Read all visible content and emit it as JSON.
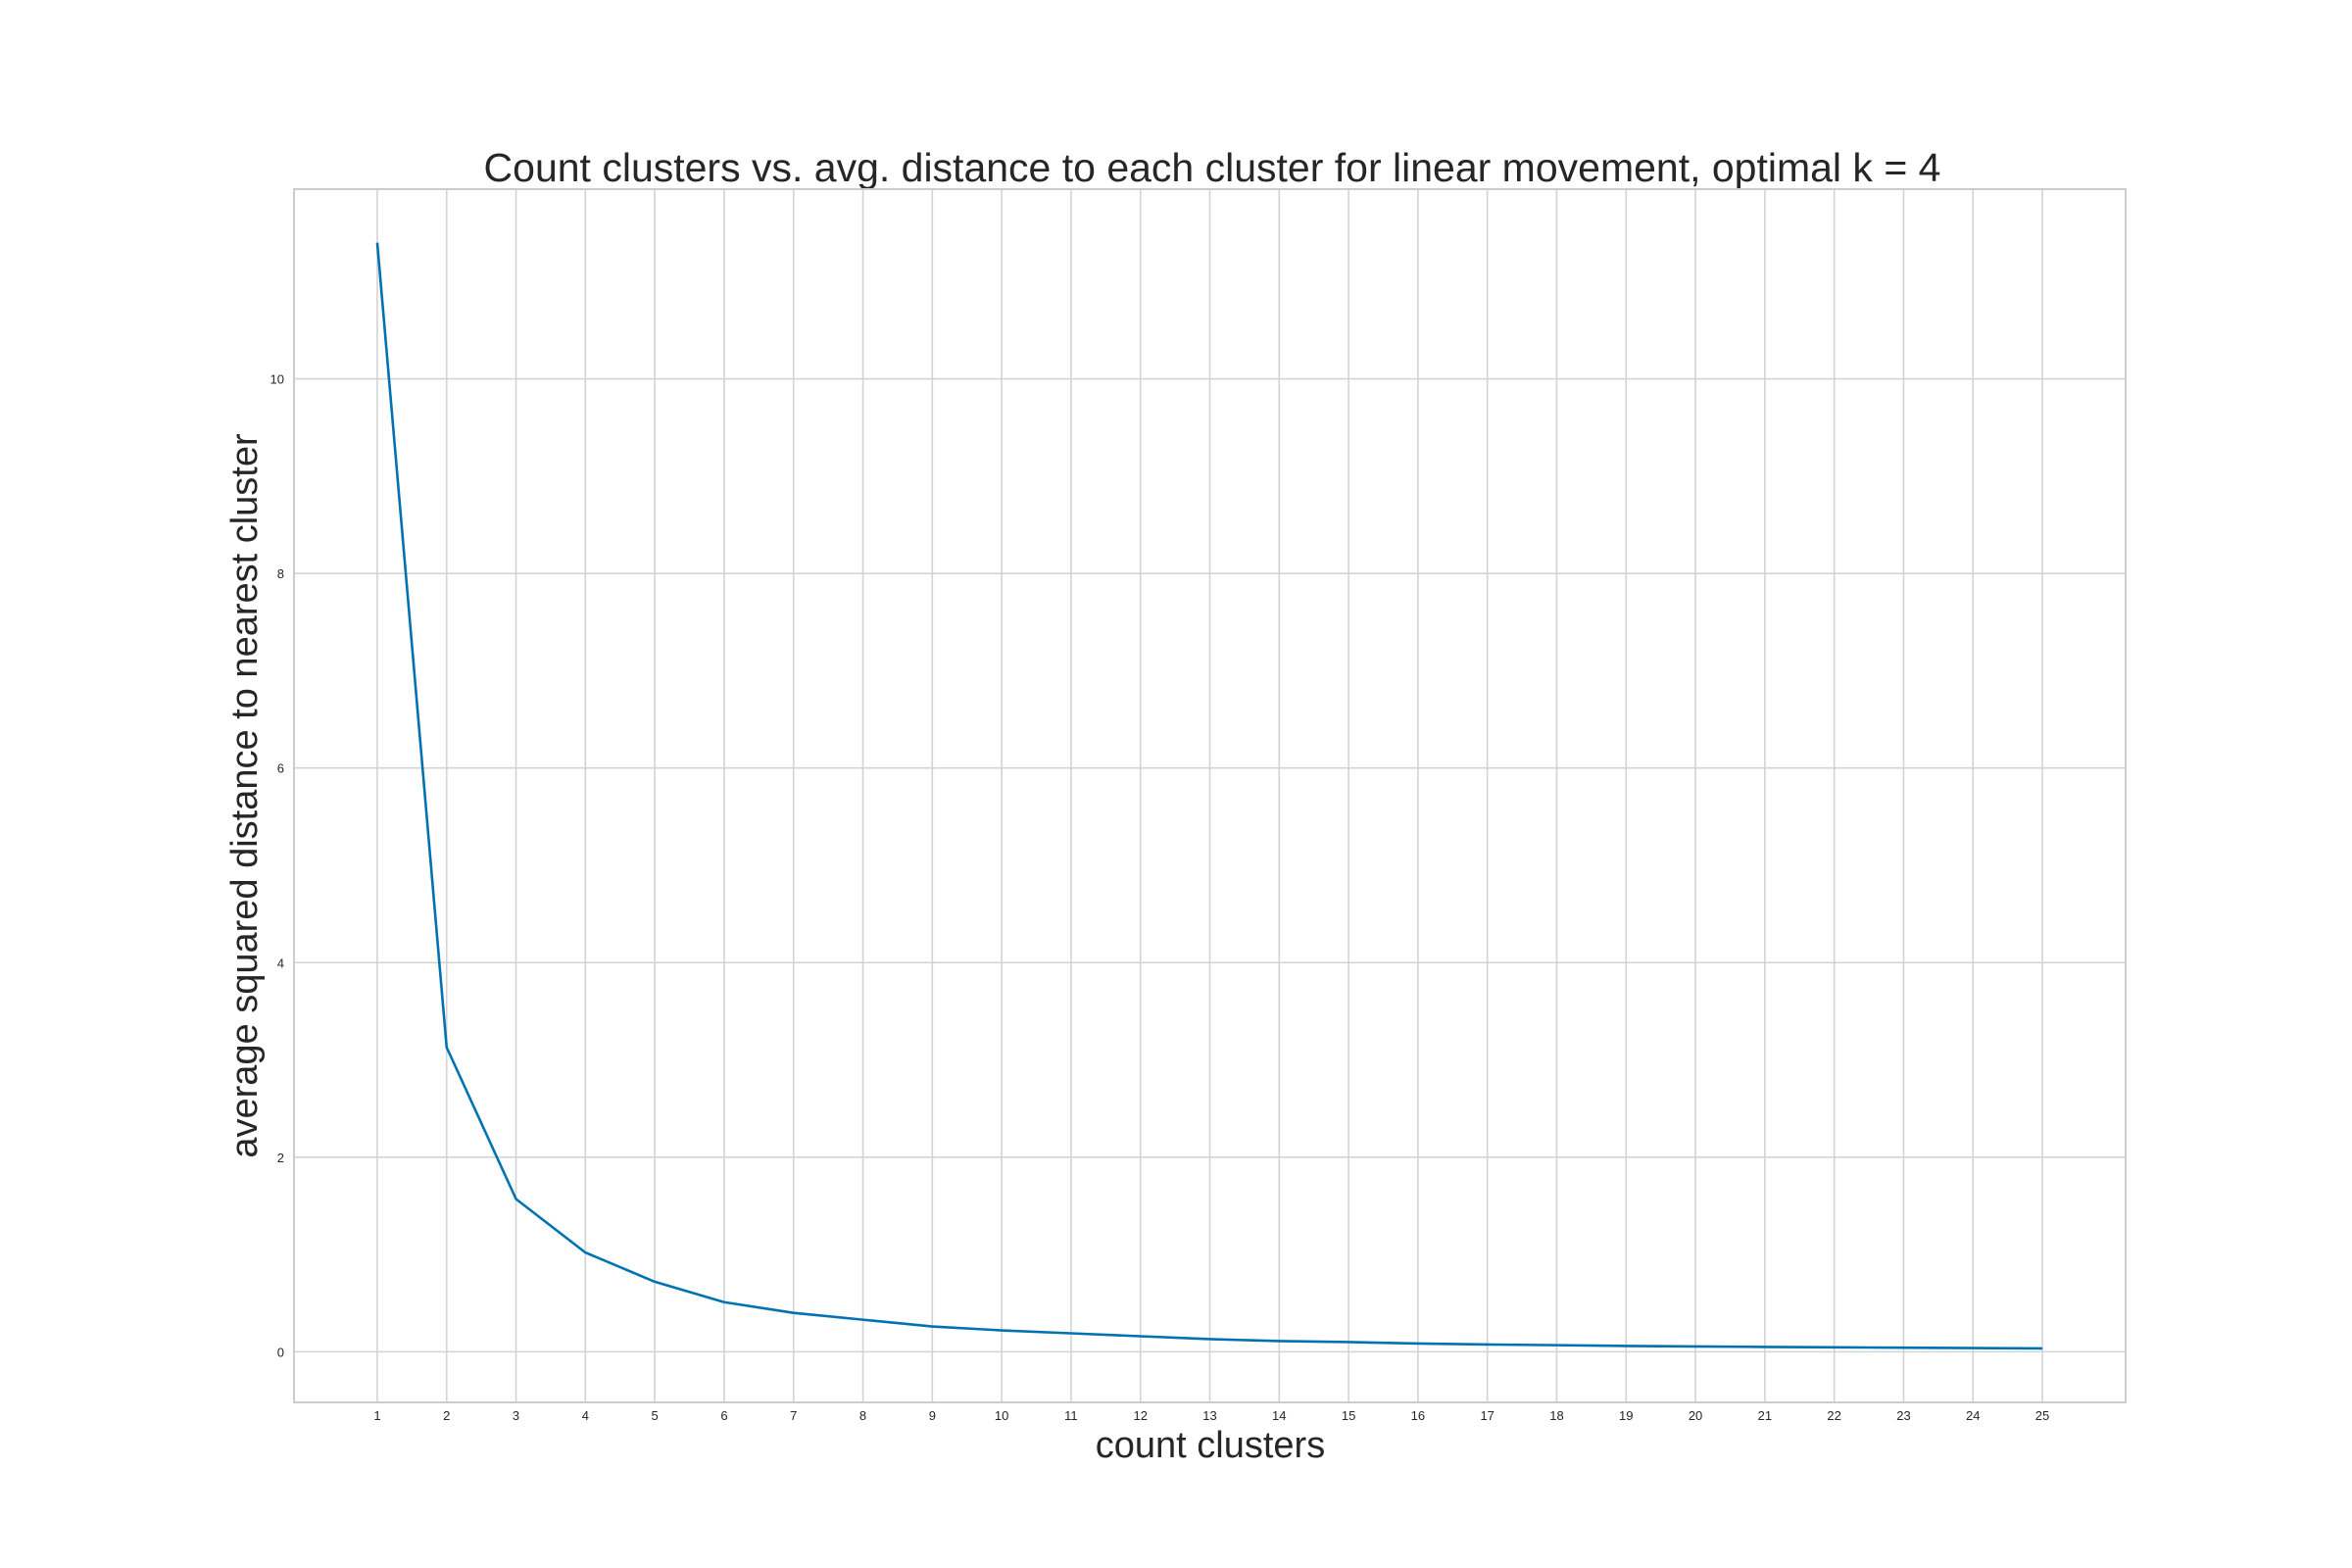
{
  "chart_data": {
    "type": "line",
    "title": "Count clusters vs. avg. distance to each cluster for linear movement, optimal k = 4",
    "xlabel": "count clusters",
    "ylabel": "average squared distance to nearest cluster",
    "x": [
      1,
      2,
      3,
      4,
      5,
      6,
      7,
      8,
      9,
      10,
      11,
      12,
      13,
      14,
      15,
      16,
      17,
      18,
      19,
      20,
      21,
      22,
      23,
      24,
      25
    ],
    "series": [
      {
        "values": [
          11.4,
          3.13,
          1.57,
          1.02,
          0.72,
          0.51,
          0.4,
          0.33,
          0.26,
          0.22,
          0.19,
          0.16,
          0.13,
          0.11,
          0.1,
          0.085,
          0.075,
          0.068,
          0.06,
          0.055,
          0.05,
          0.046,
          0.042,
          0.038,
          0.035
        ],
        "color": "#0072b2"
      }
    ],
    "xticks": [
      1,
      2,
      3,
      4,
      5,
      6,
      7,
      8,
      9,
      10,
      11,
      12,
      13,
      14,
      15,
      16,
      17,
      18,
      19,
      20,
      21,
      22,
      23,
      24,
      25
    ],
    "yticks": [
      0,
      2,
      4,
      6,
      8,
      10
    ],
    "xlim": [
      -0.2,
      26.2
    ],
    "ylim": [
      -0.52,
      11.95
    ],
    "grid": true,
    "legend": "none",
    "colors": {
      "grid": "#d3d3d3",
      "axes_edge": "#cccccc",
      "text": "#262626"
    }
  }
}
